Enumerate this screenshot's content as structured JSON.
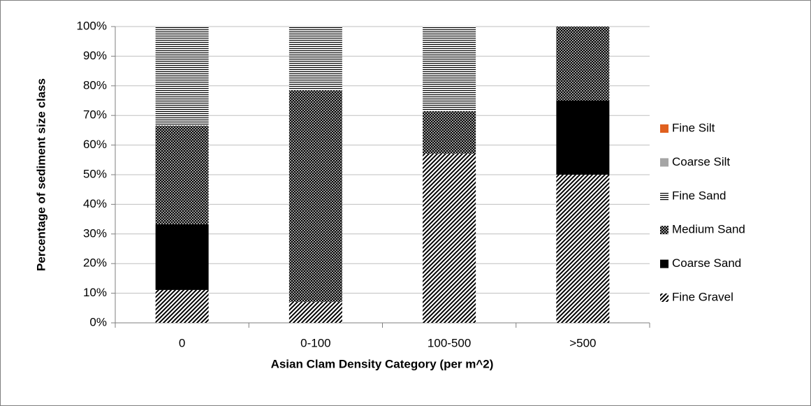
{
  "chart_data": {
    "type": "stacked_bar_percent",
    "x_label": "Asian Clam Density Category (per m^2)",
    "y_label": "Percentage of sediment size class",
    "categories": [
      "0",
      "0-100",
      "100-500",
      ">500"
    ],
    "series": [
      {
        "name": "Fine Gravel",
        "color": "#000000",
        "pattern": "diagonal",
        "values": [
          11.1,
          7.1,
          57.1,
          50
        ]
      },
      {
        "name": "Coarse Sand",
        "color": "#000000",
        "pattern": "solid",
        "values": [
          22.2,
          0,
          0,
          25
        ]
      },
      {
        "name": "Medium Sand",
        "color": "#000000",
        "pattern": "crosshatch",
        "values": [
          33.3,
          71.4,
          14.3,
          25
        ]
      },
      {
        "name": "Fine Sand",
        "color": "#000000",
        "pattern": "horizontal",
        "values": [
          33.3,
          21.4,
          28.6,
          0
        ]
      },
      {
        "name": "Coarse Silt",
        "color": "#a5a5a5",
        "pattern": "solid",
        "values": [
          0,
          0,
          0,
          0
        ]
      },
      {
        "name": "Fine Silt",
        "color": "#e0601f",
        "pattern": "solid",
        "values": [
          0,
          0,
          0,
          0
        ]
      }
    ],
    "ylim": [
      0,
      100
    ],
    "yticks": [
      {
        "value": 0,
        "label": "0%"
      },
      {
        "value": 10,
        "label": "10%"
      },
      {
        "value": 20,
        "label": "20%"
      },
      {
        "value": 30,
        "label": "30%"
      },
      {
        "value": 40,
        "label": "40%"
      },
      {
        "value": 50,
        "label": "50%"
      },
      {
        "value": 60,
        "label": "60%"
      },
      {
        "value": 70,
        "label": "70%"
      },
      {
        "value": 80,
        "label": "80%"
      },
      {
        "value": 90,
        "label": "90%"
      },
      {
        "value": 100,
        "label": "100%"
      }
    ],
    "grid": true,
    "legend": "right"
  }
}
